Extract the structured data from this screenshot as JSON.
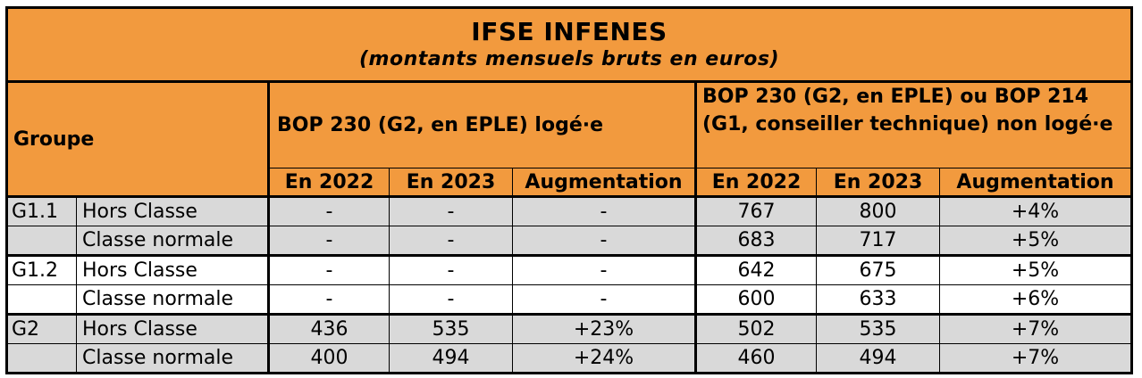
{
  "title": "IFSE INFENES",
  "subtitle": "(montants mensuels bruts en euros)",
  "header": {
    "groupe": "Groupe",
    "bop_loge": "BOP 230 (G2, en EPLE) logé·e",
    "bop_non_loge": "BOP 230 (G2, en EPLE) ou BOP 214 (G1, conseiller technique) non logé·e",
    "col_2022": "En 2022",
    "col_2023": "En 2023",
    "col_augmentation": "Augmentation"
  },
  "rows": [
    {
      "group": "G1.1",
      "classe": "Hors Classe",
      "l2022": "-",
      "l2023": "-",
      "laug": "-",
      "n2022": "767",
      "n2023": "800",
      "naug": "+4%"
    },
    {
      "group": "",
      "classe": "Classe normale",
      "l2022": "-",
      "l2023": "-",
      "laug": "-",
      "n2022": "683",
      "n2023": "717",
      "naug": "+5%"
    },
    {
      "group": "G1.2",
      "classe": "Hors Classe",
      "l2022": "-",
      "l2023": "-",
      "laug": "-",
      "n2022": "642",
      "n2023": "675",
      "naug": "+5%"
    },
    {
      "group": "",
      "classe": "Classe normale",
      "l2022": "-",
      "l2023": "-",
      "laug": "-",
      "n2022": "600",
      "n2023": "633",
      "naug": "+6%"
    },
    {
      "group": "G2",
      "classe": "Hors Classe",
      "l2022": "436",
      "l2023": "535",
      "laug": "+23%",
      "n2022": "502",
      "n2023": "535",
      "naug": "+7%"
    },
    {
      "group": "",
      "classe": "Classe normale",
      "l2022": "400",
      "l2023": "494",
      "laug": "+24%",
      "n2022": "460",
      "n2023": "494",
      "naug": "+7%"
    }
  ],
  "colors": {
    "header": "#f29a3e",
    "row_grey": "#d9d9d9",
    "row_white": "#ffffff"
  }
}
